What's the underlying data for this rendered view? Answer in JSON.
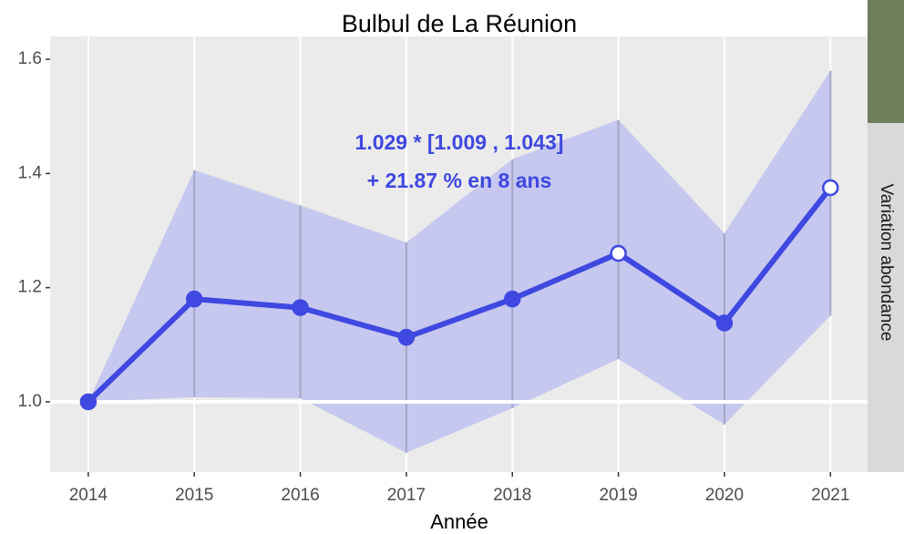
{
  "chart_data": {
    "type": "line",
    "title": "Bulbul de La Réunion",
    "x_label": "Année",
    "strip_label": "Variation abondance",
    "annotations": [
      "1.029 *  [1.009 , 1.043]",
      "+ 21.87 % en 8 ans"
    ],
    "x": [
      2014,
      2015,
      2016,
      2017,
      2018,
      2019,
      2020,
      2021
    ],
    "xlim": [
      2013.64,
      2021.35
    ],
    "xticks": [
      2014,
      2015,
      2016,
      2017,
      2018,
      2019,
      2020,
      2021
    ],
    "ylim": [
      0.877,
      1.64
    ],
    "yticks": [
      {
        "value": 1,
        "label": "1.0"
      },
      {
        "value": 1.2,
        "label": "1.2"
      },
      {
        "value": 1.4,
        "label": "1.4"
      },
      {
        "value": 1.6,
        "label": "1.6"
      }
    ],
    "reference_line": 1,
    "series": [
      {
        "color": "#3f48e0",
        "values": [
          1.0,
          1.18,
          1.165,
          1.113,
          1.18,
          1.26,
          1.138,
          1.375
        ],
        "lower": [
          1.0,
          1.008,
          1.006,
          0.911,
          0.989,
          1.075,
          0.96,
          1.151
        ],
        "upper": [
          1.0,
          1.406,
          1.344,
          1.279,
          1.425,
          1.494,
          1.295,
          1.58
        ],
        "band_color": "#b9bcf0",
        "point_fill": [
          "#3f48e0",
          "#3f48e0",
          "#3f48e0",
          "#3f48e0",
          "#3f48e0",
          "#ffffff",
          "#3f48e0",
          "#ffffff"
        ]
      }
    ]
  }
}
